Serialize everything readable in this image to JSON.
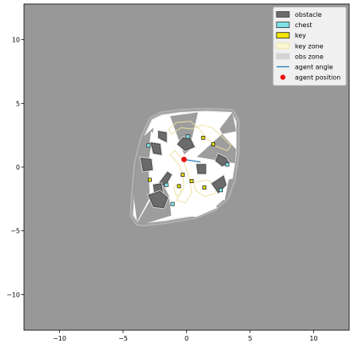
{
  "chart_data": {
    "type": "scatter",
    "xlim": [
      -12.8,
      12.8
    ],
    "ylim": [
      -12.8,
      12.8
    ],
    "xticks": [
      -10,
      -5,
      0,
      5,
      10
    ],
    "yticks": [
      -10,
      -5,
      0,
      5,
      10
    ],
    "xtick_labels": [
      "−10",
      "−5",
      "0",
      "5",
      "10"
    ],
    "ytick_labels": [
      "−10",
      "−5",
      "0",
      "5",
      "10"
    ],
    "grid": false,
    "legend_position": "top-right",
    "background_color": "#989898",
    "legend": [
      {
        "label": "obstacle",
        "kind": "patch",
        "fill": "#6b6b6b",
        "stroke": "#3a3a3a"
      },
      {
        "label": "chest",
        "kind": "patch",
        "fill": "#7fe0e6",
        "stroke": "#2b2b2b"
      },
      {
        "label": "key",
        "kind": "patch",
        "fill": "#f2e600",
        "stroke": "#1a1a1a"
      },
      {
        "label": "key zone",
        "kind": "patch",
        "fill": "#fbf6d2",
        "stroke": "#ece2a2"
      },
      {
        "label": "obs zone",
        "kind": "patch",
        "fill": "#d4d4d4",
        "stroke": "#d4d4d4"
      },
      {
        "label": "agent angle",
        "kind": "line",
        "fill": "#1f77b4",
        "stroke": "#1f77b4"
      },
      {
        "label": "agent position",
        "kind": "dot",
        "fill": "#ee1111",
        "stroke": "#ee1111"
      }
    ],
    "outer_boundary": [
      [
        -3.9,
        -4.4
      ],
      [
        -4.3,
        -3.8
      ],
      [
        -4.2,
        -2.0
      ],
      [
        -4.0,
        0.3
      ],
      [
        -3.5,
        2.3
      ],
      [
        -2.8,
        3.8
      ],
      [
        -2.0,
        4.2
      ],
      [
        -0.5,
        4.4
      ],
      [
        1.5,
        4.5
      ],
      [
        3.6,
        4.4
      ],
      [
        4.0,
        3.6
      ],
      [
        4.0,
        1.0
      ],
      [
        3.7,
        -1.0
      ],
      [
        3.2,
        -2.4
      ],
      [
        2.2,
        -3.3
      ],
      [
        0.7,
        -3.9
      ],
      [
        -1.6,
        -4.3
      ],
      [
        -3.5,
        -4.5
      ]
    ],
    "free_space": [
      [
        [
          -2.6,
          3.1
        ],
        [
          -1.9,
          3.8
        ],
        [
          -1.3,
          4.0
        ],
        [
          -0.2,
          1.0
        ]
      ],
      [
        [
          0.2,
          1.3
        ],
        [
          0.9,
          4.3
        ],
        [
          3.6,
          4.3
        ],
        [
          2.6,
          3.0
        ]
      ],
      [
        [
          -0.5,
          -0.9
        ],
        [
          0.1,
          1.1
        ],
        [
          0.6,
          0.3
        ]
      ],
      [
        [
          0.8,
          0.8
        ],
        [
          3.8,
          0.3
        ],
        [
          3.6,
          -0.9
        ]
      ],
      [
        [
          -2.8,
          1.3
        ],
        [
          0.1,
          0.6
        ],
        [
          -0.3,
          -0.3
        ],
        [
          -3.0,
          0.3
        ]
      ],
      [
        [
          -2.9,
          2.0
        ],
        [
          -0.3,
          0.8
        ],
        [
          -2.8,
          2.8
        ]
      ],
      [
        [
          2.8,
          2.6
        ],
        [
          3.9,
          2.8
        ],
        [
          3.9,
          1.4
        ]
      ],
      [
        [
          -0.6,
          -0.9
        ],
        [
          -1.2,
          -3.8
        ],
        [
          0.8,
          -3.9
        ],
        [
          2.4,
          -3.2
        ],
        [
          1.4,
          -1.2
        ]
      ],
      [
        [
          0.3,
          -0.4
        ],
        [
          3.3,
          -1.0
        ],
        [
          3.0,
          -2.6
        ],
        [
          1.6,
          -2.2
        ]
      ],
      [
        [
          -2.0,
          -1.1
        ],
        [
          -0.7,
          -0.4
        ],
        [
          -1.4,
          -2.2
        ]
      ]
    ],
    "obstacles": [
      [
        [
          -2.2,
          2.3
        ],
        [
          -1.6,
          2.0
        ],
        [
          -1.6,
          2.7
        ],
        [
          -2.2,
          2.8
        ]
      ],
      [
        [
          -2.8,
          1.9
        ],
        [
          -2.1,
          1.8
        ],
        [
          -2.0,
          1.0
        ],
        [
          -2.6,
          1.1
        ]
      ],
      [
        [
          -0.7,
          1.8
        ],
        [
          -0.1,
          1.3
        ],
        [
          0.6,
          1.6
        ],
        [
          0.3,
          2.2
        ],
        [
          -0.3,
          2.3
        ]
      ],
      [
        [
          -3.6,
          0.7
        ],
        [
          -2.8,
          0.6
        ],
        [
          -2.7,
          -0.2
        ],
        [
          -3.4,
          -0.3
        ]
      ],
      [
        [
          0.8,
          0.2
        ],
        [
          1.5,
          0.2
        ],
        [
          1.5,
          -0.5
        ],
        [
          0.9,
          -0.5
        ]
      ],
      [
        [
          2.5,
          1.0
        ],
        [
          3.1,
          0.7
        ],
        [
          3.3,
          0.3
        ],
        [
          2.8,
          0.1
        ],
        [
          2.3,
          0.5
        ]
      ],
      [
        [
          -2.1,
          -1.2
        ],
        [
          -1.5,
          -0.4
        ],
        [
          -1.2,
          -0.6
        ],
        [
          -1.7,
          -1.5
        ]
      ],
      [
        [
          -2.6,
          -1.4
        ],
        [
          -2.0,
          -1.3
        ],
        [
          -1.9,
          -2.0
        ],
        [
          -2.5,
          -2.1
        ]
      ],
      [
        [
          -3.0,
          -2.2
        ],
        [
          -2.1,
          -1.9
        ],
        [
          -1.5,
          -2.4
        ],
        [
          -1.8,
          -3.2
        ],
        [
          -2.6,
          -3.1
        ]
      ],
      [
        [
          2.0,
          -1.3
        ],
        [
          2.9,
          -0.7
        ],
        [
          3.1,
          -1.4
        ],
        [
          2.5,
          -2.0
        ]
      ]
    ],
    "key_zones": [
      [
        [
          -1.4,
          3.0
        ],
        [
          -0.8,
          3.5
        ],
        [
          0.3,
          3.6
        ],
        [
          1.0,
          3.0
        ],
        [
          1.6,
          2.2
        ],
        [
          2.4,
          1.6
        ],
        [
          3.2,
          1.3
        ],
        [
          3.5,
          1.7
        ],
        [
          2.9,
          2.3
        ],
        [
          2.0,
          3.1
        ],
        [
          1.2,
          3.3
        ],
        [
          0.4,
          3.0
        ],
        [
          -0.4,
          3.1
        ],
        [
          -1.2,
          2.6
        ]
      ],
      [
        [
          -1.3,
          1.0
        ],
        [
          -0.6,
          0.2
        ],
        [
          -0.3,
          -0.6
        ],
        [
          -0.2,
          -1.6
        ],
        [
          -0.8,
          -2.6
        ],
        [
          -0.1,
          -2.8
        ],
        [
          0.4,
          -2.0
        ],
        [
          0.2,
          -0.8
        ],
        [
          -0.2,
          0.4
        ],
        [
          -0.9,
          1.3
        ]
      ],
      [
        [
          0.6,
          -1.2
        ],
        [
          1.6,
          -1.0
        ],
        [
          2.5,
          -1.5
        ],
        [
          2.2,
          -2.1
        ],
        [
          1.4,
          -2.3
        ],
        [
          0.7,
          -1.8
        ]
      ],
      [
        [
          -1.0,
          -1.6
        ],
        [
          -0.6,
          -1.3
        ],
        [
          -0.4,
          -2.0
        ],
        [
          -0.8,
          -2.3
        ]
      ]
    ],
    "keys": [
      [
        1.3,
        2.3
      ],
      [
        2.1,
        1.8
      ],
      [
        -0.3,
        -0.6
      ],
      [
        0.4,
        -1.1
      ],
      [
        -2.9,
        -1.0
      ],
      [
        -0.6,
        -1.5
      ],
      [
        1.4,
        -1.6
      ]
    ],
    "chests": [
      [
        0.1,
        2.4
      ],
      [
        3.2,
        0.2
      ],
      [
        -3.0,
        1.7
      ],
      [
        -1.6,
        -1.4
      ],
      [
        2.7,
        -1.8
      ],
      [
        -1.1,
        -2.9
      ]
    ],
    "agent_position": [
      -0.2,
      0.6
    ],
    "agent_angle_end": [
      1.1,
      0.4
    ]
  }
}
